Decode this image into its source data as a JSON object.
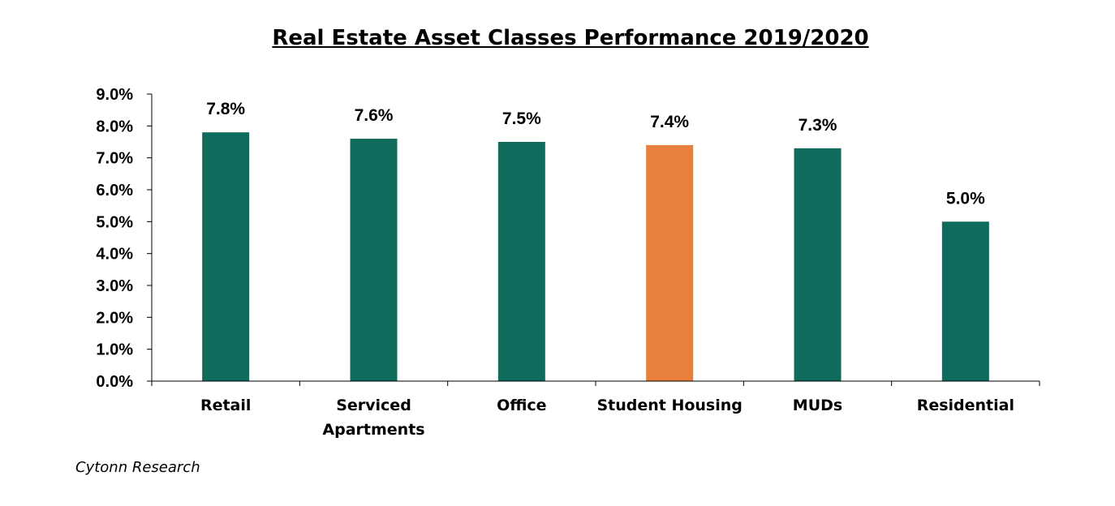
{
  "chart_data": {
    "type": "bar",
    "title": "Real Estate Asset Classes Performance 2019/2020",
    "categories": [
      [
        "Retail"
      ],
      [
        "Serviced",
        "Apartments"
      ],
      [
        "Office"
      ],
      [
        "Student Housing"
      ],
      [
        "MUDs"
      ],
      [
        "Residential"
      ]
    ],
    "values": [
      7.8,
      7.6,
      7.5,
      7.4,
      7.3,
      5.0
    ],
    "data_labels": [
      "7.8%",
      "7.6%",
      "7.5%",
      "7.4%",
      "7.3%",
      "5.0%"
    ],
    "bar_colors": [
      "#0f6b5b",
      "#0f6b5b",
      "#0f6b5b",
      "#e97f3d",
      "#0f6b5b",
      "#0f6b5b"
    ],
    "ylim": [
      0,
      9
    ],
    "yticks": [
      0,
      1,
      2,
      3,
      4,
      5,
      6,
      7,
      8,
      9
    ],
    "ytick_labels": [
      "0.0%",
      "1.0%",
      "2.0%",
      "3.0%",
      "4.0%",
      "5.0%",
      "6.0%",
      "7.0%",
      "8.0%",
      "9.0%"
    ],
    "xlabel": "",
    "ylabel": "",
    "grid": false,
    "legend": "none"
  },
  "source": "Cytonn Research"
}
